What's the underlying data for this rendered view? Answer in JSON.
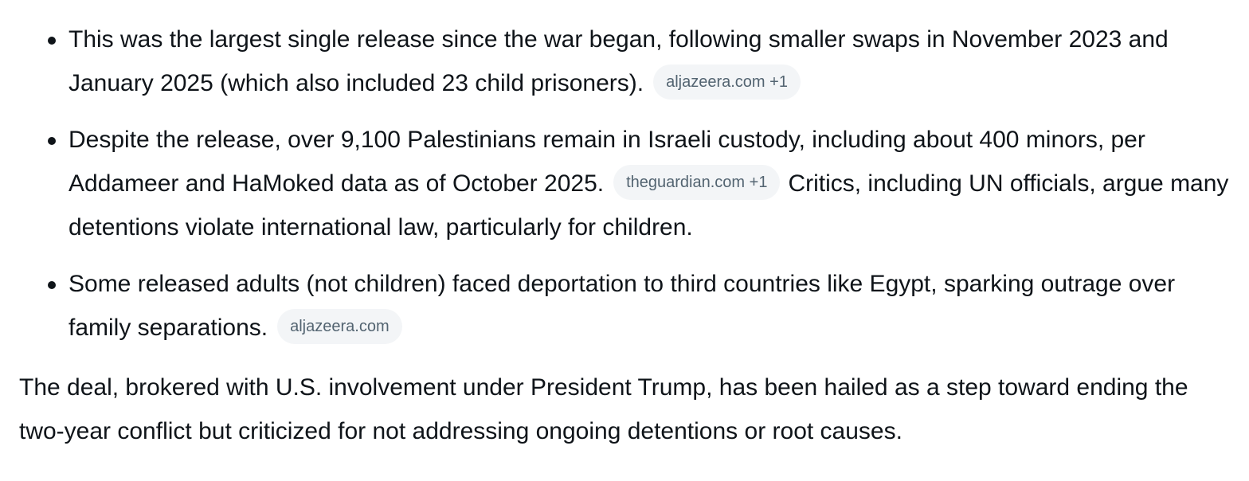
{
  "bullets": [
    {
      "text_before": "This was the largest single release since the war began, following smaller swaps in November 2023 and January 2025 (which also included 23 child prisoners).",
      "chip": "aljazeera.com +1",
      "text_after": ""
    },
    {
      "text_before": "Despite the release, over 9,100 Palestinians remain in Israeli custody, including about 400 minors, per Addameer and HaMoked data as of October 2025.",
      "chip": "theguardian.com +1",
      "text_after": "Critics, including UN officials, argue many detentions violate international law, particularly for children."
    },
    {
      "text_before": "Some released adults (not children) faced deportation to third countries like Egypt, sparking outrage over family separations.",
      "chip": "aljazeera.com",
      "text_after": ""
    }
  ],
  "summary": "The deal, brokered with U.S. involvement under President Trump, has been hailed as a step toward ending the two-year conflict but criticized for not addressing ongoing detentions or root causes."
}
